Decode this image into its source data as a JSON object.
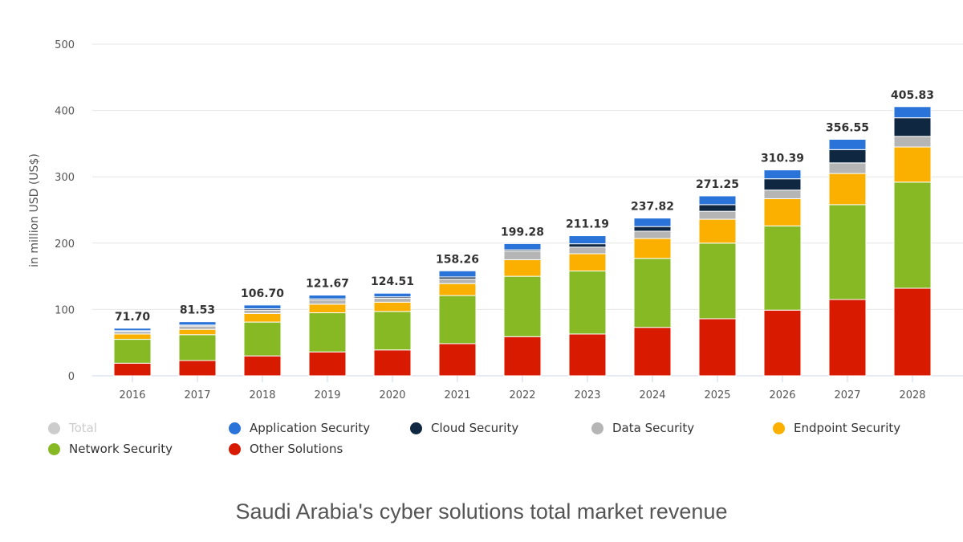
{
  "chart_data": {
    "type": "bar",
    "stacked": true,
    "title": "Saudi Arabia's cyber solutions total market revenue",
    "xlabel": "",
    "ylabel": "in million USD (US$)",
    "ylim": [
      0,
      500
    ],
    "yticks": [
      0,
      100,
      200,
      300,
      400,
      500
    ],
    "grid": true,
    "legend_position": "bottom",
    "categories": [
      "2016",
      "2017",
      "2018",
      "2019",
      "2020",
      "2021",
      "2022",
      "2023",
      "2024",
      "2025",
      "2026",
      "2027",
      "2028"
    ],
    "totals": [
      "71.70",
      "81.53",
      "106.70",
      "121.67",
      "124.51",
      "158.26",
      "199.28",
      "211.19",
      "237.82",
      "271.25",
      "310.39",
      "356.55",
      "405.83"
    ],
    "legend": [
      {
        "name": "Total",
        "color": "#cccccc",
        "hidden": true
      },
      {
        "name": "Application Security",
        "color": "#2a74d9"
      },
      {
        "name": "Cloud Security",
        "color": "#0f2740"
      },
      {
        "name": "Data Security",
        "color": "#b5b5b5"
      },
      {
        "name": "Endpoint Security",
        "color": "#fbb000"
      },
      {
        "name": "Network Security",
        "color": "#86b924"
      },
      {
        "name": "Other Solutions",
        "color": "#d81b00"
      }
    ],
    "series": [
      {
        "name": "Other Solutions",
        "color": "#d81b00",
        "values": [
          19,
          23,
          30,
          36,
          39,
          48.5,
          59,
          63,
          73,
          86,
          99,
          115,
          132
        ]
      },
      {
        "name": "Network Security",
        "color": "#86b924",
        "values": [
          36,
          39,
          51,
          59,
          58,
          72.5,
          91,
          95,
          104,
          114,
          127,
          143,
          160
        ]
      },
      {
        "name": "Endpoint Security",
        "color": "#fbb000",
        "values": [
          8,
          8,
          13,
          13,
          14,
          18,
          25,
          26,
          30,
          36,
          41,
          47,
          53
        ]
      },
      {
        "name": "Data Security",
        "color": "#b5b5b5",
        "values": [
          4,
          5,
          5,
          6,
          6,
          7,
          13,
          10,
          11,
          12,
          13,
          16,
          16
        ]
      },
      {
        "name": "Cloud Security",
        "color": "#0f2740",
        "values": [
          1,
          1.5,
          2,
          2,
          2,
          3,
          2,
          5,
          7,
          10,
          17,
          20,
          28
        ]
      },
      {
        "name": "Application Security",
        "color": "#2a74d9",
        "values": [
          3.7,
          5.03,
          5.7,
          5.67,
          5.51,
          9.26,
          9.28,
          12.19,
          12.82,
          13.25,
          13.39,
          15.55,
          16.83
        ]
      }
    ]
  }
}
